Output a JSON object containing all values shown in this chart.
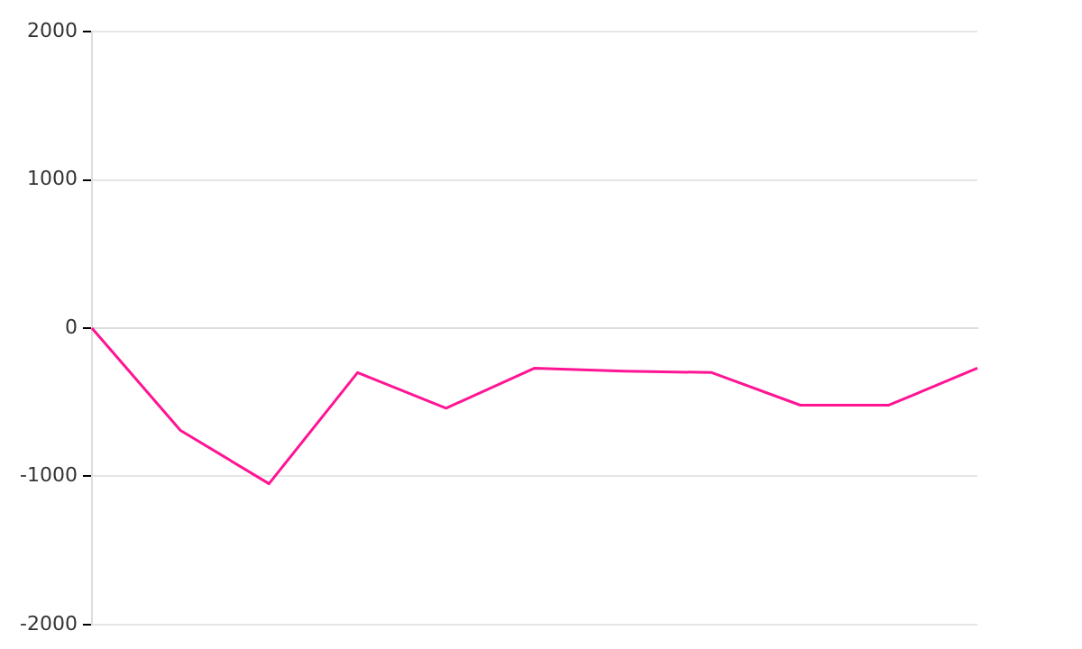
{
  "chart_data": {
    "type": "line",
    "categories": [
      null,
      null,
      null,
      null,
      null,
      null,
      null,
      null,
      null,
      null,
      null
    ],
    "series": [
      {
        "color": "#ff1493",
        "values": [
          0,
          -690,
          -1050,
          -300,
          -540,
          -270,
          -290,
          -300,
          -520,
          -520,
          -270
        ]
      }
    ],
    "ylim": [
      -2000,
      2000
    ],
    "yticks": [
      -2000,
      -1000,
      0,
      1000,
      2000
    ],
    "grid": "y",
    "tick_labels": "y",
    "legend": false,
    "marker": "none",
    "line_style": "solid"
  }
}
